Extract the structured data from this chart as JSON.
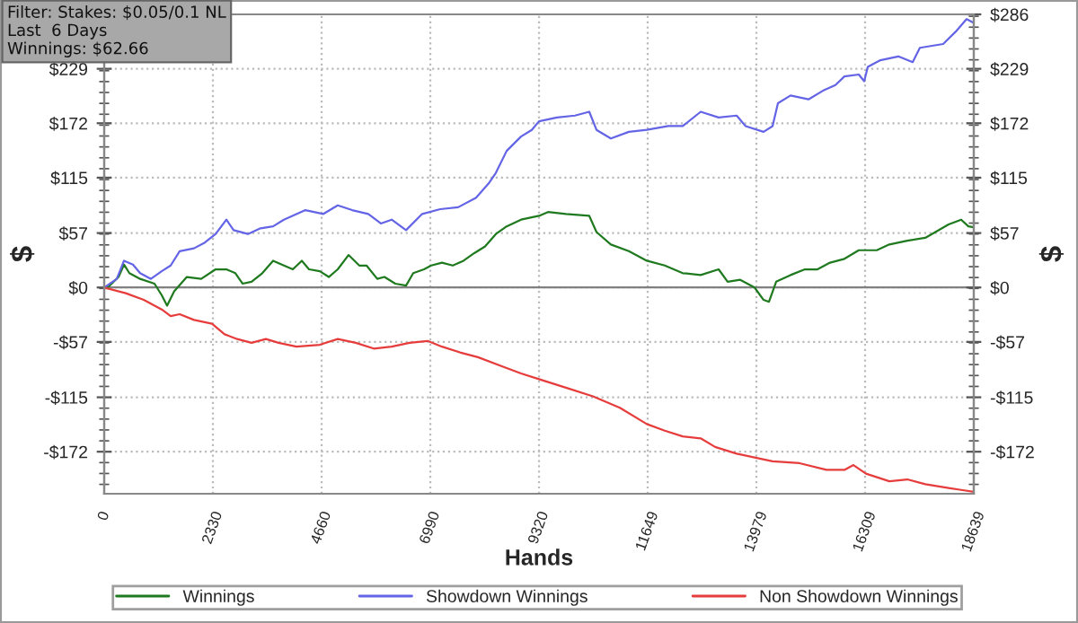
{
  "chart_data": {
    "type": "line",
    "xlabel": "Hands",
    "ylabel": "$",
    "y2label": "$",
    "annotations": [
      "Filter: Stakes: $0.05/0.1 NL\nLast  6 Days\nWinnings: $62.66"
    ],
    "xlim": [
      0,
      18639
    ],
    "xticks": [
      0,
      2330,
      4660,
      6990,
      9320,
      11649,
      13979,
      16309,
      18639
    ],
    "ylim": [
      -216,
      286
    ],
    "yticks": [
      {
        "value": -172,
        "label": "-$172"
      },
      {
        "value": -115,
        "label": "-$115"
      },
      {
        "value": -57,
        "label": "-$57"
      },
      {
        "value": 0,
        "label": "$0"
      },
      {
        "value": 57,
        "label": "$57"
      },
      {
        "value": 115,
        "label": "$115"
      },
      {
        "value": 172,
        "label": "$172"
      },
      {
        "value": 229,
        "label": "$229"
      }
    ],
    "y2lim": [
      -216,
      286
    ],
    "y2ticks": [
      {
        "value": -172,
        "label": "-$172"
      },
      {
        "value": -115,
        "label": "-$115"
      },
      {
        "value": -57,
        "label": "-$57"
      },
      {
        "value": 0,
        "label": "$0"
      },
      {
        "value": 57,
        "label": "$57"
      },
      {
        "value": 115,
        "label": "$115"
      },
      {
        "value": 172,
        "label": "$172"
      },
      {
        "value": 229,
        "label": "$229"
      },
      {
        "value": 286,
        "label": "$286"
      }
    ],
    "grid": true,
    "legend": "bottom",
    "marker": "none",
    "line_style": "solid",
    "ref_lines": [
      {
        "axis": "y",
        "value": 0,
        "label": null,
        "color": "#808080"
      }
    ],
    "series": [
      {
        "name": "Winnings",
        "color": "#1f7a1f",
        "x": [
          0,
          77,
          308,
          424,
          539,
          770,
          1078,
          1232,
          1348,
          1500,
          1771,
          2079,
          2388,
          2619,
          2811,
          2965,
          3158,
          3389,
          3620,
          3851,
          4043,
          4236,
          4390,
          4621,
          4814,
          5006,
          5237,
          5468,
          5622,
          5853,
          6007,
          6239,
          6470,
          6624,
          6855,
          7009,
          7240,
          7471,
          7702,
          7933,
          8164,
          8395,
          8626,
          8934,
          9320,
          9512,
          9897,
          10397,
          10552,
          10860,
          11245,
          11630,
          12015,
          12400,
          12785,
          13170,
          13363,
          13633,
          13940,
          14133,
          14249,
          14403,
          14711,
          15019,
          15289,
          15558,
          15866,
          16174,
          16559,
          16829,
          17214,
          17599,
          18099,
          18369,
          18523,
          18639
        ],
        "values": [
          0,
          0,
          11,
          24,
          15,
          9,
          4,
          -8,
          -19,
          -4,
          11,
          9,
          19,
          19,
          15,
          4,
          6,
          15,
          28,
          23,
          19,
          28,
          19,
          17,
          11,
          19,
          34,
          23,
          23,
          9,
          11,
          4,
          2,
          15,
          19,
          23,
          26,
          23,
          28,
          36,
          43,
          56,
          64,
          71,
          75,
          79,
          77,
          75,
          58,
          45,
          38,
          28,
          23,
          15,
          13,
          19,
          6,
          8,
          0,
          -13,
          -15,
          6,
          13,
          19,
          19,
          26,
          30,
          39,
          39,
          45,
          49,
          52,
          66,
          71,
          64,
          63
        ]
      },
      {
        "name": "Showdown Winnings",
        "color": "#6464e6",
        "x": [
          0,
          270,
          424,
          616,
          770,
          1001,
          1232,
          1425,
          1617,
          1925,
          2157,
          2388,
          2619,
          2773,
          3081,
          3351,
          3620,
          3851,
          4313,
          4698,
          5006,
          5314,
          5661,
          5930,
          6162,
          6470,
          6816,
          7202,
          7587,
          7971,
          8241,
          8395,
          8626,
          8934,
          9165,
          9320,
          9705,
          10090,
          10397,
          10552,
          10860,
          11245,
          11630,
          12092,
          12400,
          12785,
          13170,
          13556,
          13748,
          14133,
          14326,
          14441,
          14711,
          15096,
          15404,
          15673,
          15866,
          16174,
          16290,
          16367,
          16636,
          17021,
          17329,
          17483,
          17983,
          18253,
          18484,
          18639
        ],
        "values": [
          0,
          9,
          28,
          24,
          15,
          9,
          17,
          23,
          38,
          41,
          47,
          56,
          71,
          60,
          56,
          62,
          64,
          71,
          81,
          77,
          86,
          81,
          77,
          67,
          71,
          60,
          77,
          82,
          84,
          94,
          109,
          120,
          143,
          158,
          165,
          174,
          178,
          180,
          184,
          165,
          156,
          163,
          165,
          169,
          169,
          184,
          178,
          180,
          169,
          163,
          169,
          193,
          201,
          197,
          206,
          212,
          221,
          223,
          216,
          231,
          238,
          242,
          236,
          251,
          255,
          268,
          281,
          277
        ]
      },
      {
        "name": "Non Showdown Winnings",
        "color": "#e63c3c",
        "x": [
          0,
          462,
          847,
          1232,
          1425,
          1617,
          1925,
          2311,
          2580,
          2850,
          3158,
          3466,
          3736,
          4121,
          4621,
          5006,
          5391,
          5777,
          6162,
          6547,
          6932,
          7240,
          7625,
          8010,
          8549,
          8934,
          9320,
          9897,
          10475,
          11053,
          11630,
          12015,
          12400,
          12785,
          13094,
          13556,
          13940,
          14326,
          14904,
          15481,
          15866,
          16059,
          16328,
          16829,
          17214,
          17599,
          18099,
          18369,
          18639
        ],
        "values": [
          0,
          -6,
          -13,
          -23,
          -30,
          -28,
          -34,
          -38,
          -49,
          -54,
          -58,
          -54,
          -58,
          -62,
          -60,
          -54,
          -58,
          -64,
          -62,
          -58,
          -56,
          -62,
          -68,
          -73,
          -83,
          -90,
          -96,
          -105,
          -114,
          -126,
          -143,
          -150,
          -156,
          -158,
          -167,
          -174,
          -178,
          -182,
          -184,
          -191,
          -191,
          -186,
          -195,
          -203,
          -201,
          -206,
          -210,
          -212,
          -214
        ]
      }
    ]
  }
}
